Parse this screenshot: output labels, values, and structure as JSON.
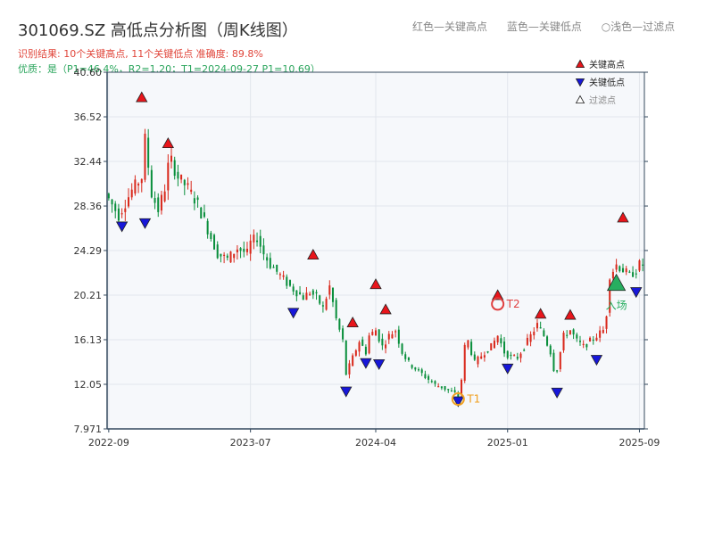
{
  "header": {
    "title": "301069.SZ 高低点分析图（周K线图）",
    "summary": "识别结果: 10个关键高点, 11个关键低点  准确度: 89.8%",
    "quality": "优质：是（P1=46.4%，R2=1.20；T1=2024-09-27 P1=10.69）",
    "legend_red": "红色—关键高点",
    "legend_blue": "蓝色—关键低点",
    "legend_faint": "○浅色—过滤点"
  },
  "colors": {
    "up": "#d9291c",
    "down": "#0a8f3c",
    "high_marker": "#e8151b",
    "low_marker": "#1717d9",
    "t_marker": "#f0a020",
    "t2_marker": "#e04040",
    "entry": "#27ae60",
    "plot_bg": "#f6f8fb",
    "grid": "#e2e6ec",
    "axis": "#34495e"
  },
  "chart_data": {
    "type": "candlestick",
    "y_ticks": [
      "7.971",
      "12.05",
      "16.13",
      "20.21",
      "24.29",
      "28.36",
      "32.44",
      "36.52",
      "40.60"
    ],
    "ylim": [
      7.971,
      40.6
    ],
    "x_ticks": [
      {
        "label": "2022-09",
        "i": 0
      },
      {
        "label": "2023-07",
        "i": 43
      },
      {
        "label": "2024-04",
        "i": 81
      },
      {
        "label": "2025-01",
        "i": 121
      },
      {
        "label": "2025-09",
        "i": 161
      }
    ],
    "n_bars": 163,
    "price_path": [
      [
        0,
        29.5
      ],
      [
        4,
        27.5
      ],
      [
        8,
        29.8
      ],
      [
        11,
        31.0
      ],
      [
        12,
        34.5
      ],
      [
        14,
        29.5
      ],
      [
        16,
        28.0
      ],
      [
        18,
        30.0
      ],
      [
        19,
        32.0
      ],
      [
        20,
        32.5
      ],
      [
        22,
        31.0
      ],
      [
        25,
        30.0
      ],
      [
        28,
        28.5
      ],
      [
        30,
        27.0
      ],
      [
        32,
        25.5
      ],
      [
        34,
        24.0
      ],
      [
        37,
        23.5
      ],
      [
        40,
        24.5
      ],
      [
        43,
        24.0
      ],
      [
        44,
        25.0
      ],
      [
        46,
        25.5
      ],
      [
        48,
        24.0
      ],
      [
        50,
        23.0
      ],
      [
        53,
        22.0
      ],
      [
        56,
        21.0
      ],
      [
        58,
        20.5
      ],
      [
        60,
        20.0
      ],
      [
        62,
        20.5
      ],
      [
        64,
        20.0
      ],
      [
        66,
        19.0
      ],
      [
        68,
        21.0
      ],
      [
        70,
        18.0
      ],
      [
        72,
        16.0
      ],
      [
        73,
        13.0
      ],
      [
        75,
        14.5
      ],
      [
        77,
        16.0
      ],
      [
        79,
        15.0
      ],
      [
        80,
        16.5
      ],
      [
        82,
        17.0
      ],
      [
        84,
        15.5
      ],
      [
        86,
        16.5
      ],
      [
        88,
        17.0
      ],
      [
        90,
        15.0
      ],
      [
        92,
        14.0
      ],
      [
        94,
        13.5
      ],
      [
        96,
        13.0
      ],
      [
        98,
        12.5
      ],
      [
        100,
        12.0
      ],
      [
        102,
        11.8
      ],
      [
        104,
        11.5
      ],
      [
        106,
        11.2
      ],
      [
        107,
        11.0
      ],
      [
        108,
        12.5
      ],
      [
        109,
        15.5
      ],
      [
        110,
        16.0
      ],
      [
        112,
        14.0
      ],
      [
        115,
        15.0
      ],
      [
        117,
        15.5
      ],
      [
        119,
        16.5
      ],
      [
        121,
        15.0
      ],
      [
        123,
        14.5
      ],
      [
        125,
        14.5
      ],
      [
        127,
        15.5
      ],
      [
        129,
        16.5
      ],
      [
        131,
        17.5
      ],
      [
        133,
        16.5
      ],
      [
        135,
        15.0
      ],
      [
        136,
        13.5
      ],
      [
        137,
        13.5
      ],
      [
        139,
        16.5
      ],
      [
        141,
        17.0
      ],
      [
        143,
        16.0
      ],
      [
        145,
        15.5
      ],
      [
        147,
        16.0
      ],
      [
        149,
        16.5
      ],
      [
        151,
        17.0
      ],
      [
        152,
        18.5
      ],
      [
        153,
        22.0
      ],
      [
        155,
        23.0
      ],
      [
        157,
        22.5
      ],
      [
        159,
        22.0
      ],
      [
        161,
        22.5
      ],
      [
        162,
        23.0
      ]
    ],
    "key_highs": [
      {
        "i": 10,
        "v": 37.8
      },
      {
        "i": 18,
        "v": 33.6
      },
      {
        "i": 62,
        "v": 23.4
      },
      {
        "i": 74,
        "v": 17.2
      },
      {
        "i": 81,
        "v": 20.7
      },
      {
        "i": 84,
        "v": 18.4
      },
      {
        "i": 118,
        "v": 19.7
      },
      {
        "i": 131,
        "v": 18.0
      },
      {
        "i": 140,
        "v": 17.9
      },
      {
        "i": 156,
        "v": 26.8
      }
    ],
    "key_lows": [
      {
        "i": 4,
        "v": 27.0
      },
      {
        "i": 11,
        "v": 27.3
      },
      {
        "i": 56,
        "v": 19.1
      },
      {
        "i": 72,
        "v": 11.9
      },
      {
        "i": 78,
        "v": 14.5
      },
      {
        "i": 82,
        "v": 14.4
      },
      {
        "i": 106,
        "v": 11.0
      },
      {
        "i": 121,
        "v": 14.0
      },
      {
        "i": 136,
        "v": 11.8
      },
      {
        "i": 148,
        "v": 14.8
      },
      {
        "i": 160,
        "v": 21.0
      }
    ],
    "annotations": [
      {
        "label": "T1",
        "i": 106,
        "v": 10.7,
        "kind": "t1"
      },
      {
        "label": "T2",
        "i": 118,
        "v": 19.4,
        "kind": "t2"
      },
      {
        "label": "入场",
        "i": 154,
        "v": 20.8,
        "kind": "entry"
      }
    ],
    "plot_legend": [
      {
        "label": "关键高点",
        "marker": "up"
      },
      {
        "label": "关键低点",
        "marker": "down"
      },
      {
        "label": "过滤点",
        "marker": "faint"
      }
    ]
  }
}
